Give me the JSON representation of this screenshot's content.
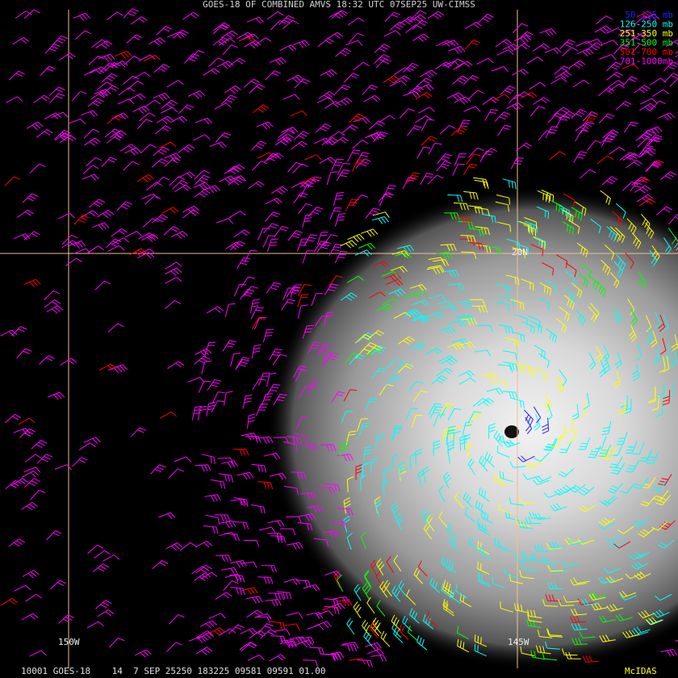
{
  "header": {
    "title": "GOES-18 OF COMBINED AMVS 18:32 UTC 07SEP25 UW-CIMSS"
  },
  "legend": {
    "items": [
      {
        "label": "50-125 mb",
        "color": "#2020ff"
      },
      {
        "label": "126-250 mb",
        "color": "#00ffff"
      },
      {
        "label": "251-350 mb",
        "color": "#ffff00"
      },
      {
        "label": "351-500 mb",
        "color": "#00ff00"
      },
      {
        "label": "501-700 mb",
        "color": "#ff0000"
      },
      {
        "label": "701-1000mb",
        "color": "#ff00ff"
      }
    ]
  },
  "map": {
    "latitude_label": "20N",
    "longitude_labels": [
      "150W",
      "145W"
    ],
    "grid_color": "#f0c090"
  },
  "footer": {
    "info": "10001 GOES-18    14  7 SEP 25250 183225 09581 09591 01.00",
    "software": "McIDAS"
  }
}
